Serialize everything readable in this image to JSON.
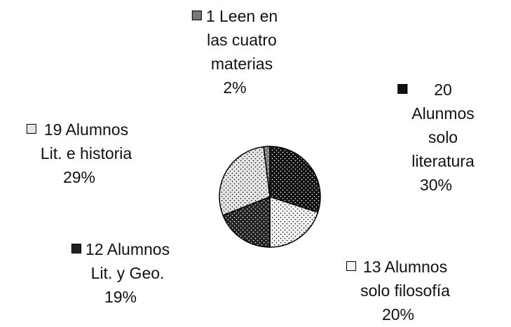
{
  "chart_data": {
    "type": "pie",
    "categories": [
      "1 Leen en\nlas cuatro\nmaterias",
      "20 Alunmos\nsolo literatura",
      "13 Alumnos\nsolo filosofía",
      "12 Alumnos\nLit. y Geo.",
      "19 Alumnos\nLit. e historia"
    ],
    "values": [
      2,
      30,
      20,
      19,
      29
    ],
    "value_labels": [
      "2%",
      "30%",
      "20%",
      "19%",
      "29%"
    ],
    "colors": [
      "#777777",
      "#111111",
      "#f4f4f4",
      "#222222",
      "#e6e6e6"
    ]
  }
}
